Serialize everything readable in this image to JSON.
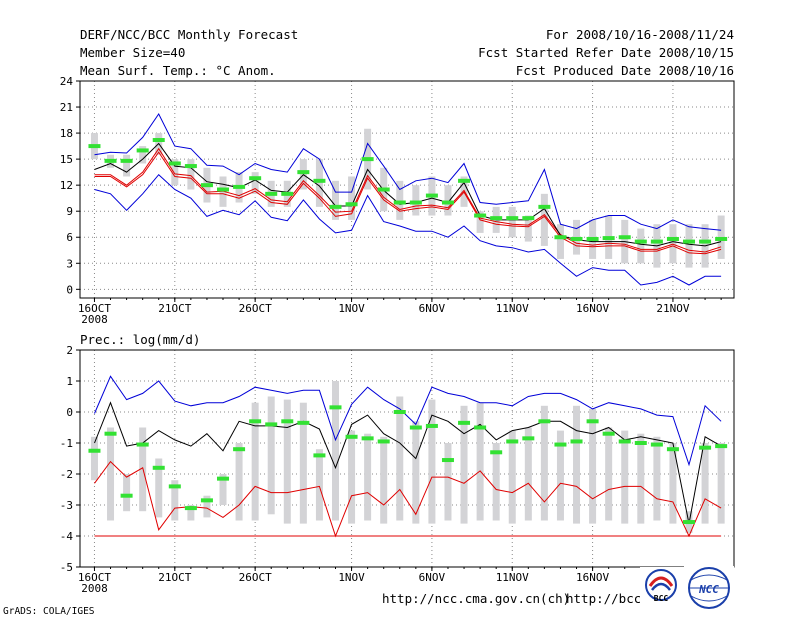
{
  "header": {
    "left_line1": "DERF/NCC/BCC Monthly Forecast",
    "left_line2": "Member Size=40",
    "left_line3": "Mean Surf. Temp.: °C Anom.",
    "right_line1": "For 2008/10/16-2008/11/24",
    "right_line2": "Fcst Started Refer Date 2008/10/15",
    "right_line3": "Fcst Produced Date 2008/10/16"
  },
  "footer": {
    "credit": "GrADS: COLA/IGES",
    "url1": "http://ncc.cma.gov.cn(ch)",
    "url2": "http://bcc.",
    "logo1_label": "BCC",
    "logo2_label": "NCC"
  },
  "colors": {
    "bar": "#d3d3d6",
    "median": "#33e133",
    "upper": "#0000d8",
    "mean": "#000000",
    "lower": "#e00000",
    "logo_red": "#d62020",
    "logo_blue": "#1a3faa"
  },
  "chart_data": [
    {
      "type": "line",
      "title": "Mean Surf. Temp.: °C Anom.",
      "xlabel": "",
      "ylabel": "",
      "ylim": [
        -1,
        24
      ],
      "yticks": [
        "0",
        "3",
        "6",
        "9",
        "12",
        "15",
        "18",
        "21",
        "24"
      ],
      "x_ticks": [
        {
          "day": 0,
          "label": "16OCT",
          "sub": "2008"
        },
        {
          "day": 5,
          "label": "21OCT"
        },
        {
          "day": 10,
          "label": "26OCT"
        },
        {
          "day": 16,
          "label": "1NOV"
        },
        {
          "day": 21,
          "label": "6NOV"
        },
        {
          "day": 26,
          "label": "11NOV"
        },
        {
          "day": 31,
          "label": "16NOV"
        },
        {
          "day": 36,
          "label": "21NOV"
        }
      ],
      "x_range": [
        -0.9,
        39.8
      ],
      "series": [
        {
          "name": "upper",
          "values": [
            15.5,
            15.8,
            15.7,
            17.5,
            20.2,
            16.5,
            16.2,
            14.3,
            14.2,
            13.2,
            14.5,
            13.8,
            13.5,
            16.2,
            15.0,
            11.2,
            11.2,
            16.8,
            14.2,
            11.5,
            12.5,
            12.8,
            12.3,
            14.5,
            10.0,
            9.8,
            10.0,
            10.2,
            13.8,
            7.5,
            7.0,
            8.0,
            8.5,
            8.5,
            7.5,
            7.0,
            8.0,
            7.2,
            7.0,
            6.8
          ]
        },
        {
          "name": "mean",
          "values": [
            13.8,
            14.5,
            13.5,
            15.0,
            16.8,
            14.2,
            14.0,
            12.4,
            12.1,
            11.7,
            12.6,
            11.4,
            11.2,
            13.2,
            11.9,
            9.6,
            9.6,
            13.8,
            11.4,
            9.8,
            10.0,
            10.5,
            10.0,
            12.3,
            8.5,
            8.0,
            8.0,
            8.0,
            9.3,
            6.2,
            5.7,
            5.5,
            5.5,
            5.5,
            5.2,
            5.0,
            5.5,
            5.2,
            5.0,
            5.5
          ]
        },
        {
          "name": "lower",
          "values": [
            11.5,
            11.0,
            9.1,
            11.0,
            13.2,
            11.5,
            10.5,
            8.4,
            9.1,
            8.6,
            10.2,
            8.3,
            7.9,
            10.3,
            8.1,
            6.5,
            6.8,
            10.8,
            7.8,
            7.3,
            6.7,
            6.7,
            6.0,
            7.3,
            5.6,
            5.0,
            4.8,
            4.3,
            4.6,
            3.0,
            1.5,
            2.5,
            2.2,
            2.2,
            0.5,
            0.8,
            1.5,
            0.5,
            1.5,
            1.5
          ]
        },
        {
          "name": "band_high",
          "values": [
            13.2,
            13.2,
            12.0,
            13.5,
            16.2,
            13.3,
            13.1,
            11.2,
            11.3,
            10.8,
            11.6,
            10.3,
            10.1,
            12.5,
            10.8,
            8.9,
            9.0,
            13.1,
            10.6,
            9.2,
            9.6,
            9.7,
            9.4,
            11.4,
            8.2,
            7.8,
            7.5,
            7.4,
            8.6,
            6.3,
            5.3,
            5.1,
            5.3,
            5.2,
            4.6,
            4.6,
            5.2,
            4.5,
            4.3,
            4.9
          ]
        },
        {
          "name": "band_low",
          "values": [
            13.0,
            13.0,
            11.8,
            13.2,
            15.8,
            13.0,
            12.8,
            11.0,
            11.0,
            10.5,
            11.3,
            10.0,
            9.8,
            12.2,
            10.5,
            8.4,
            8.7,
            12.8,
            10.3,
            9.0,
            9.3,
            9.5,
            9.2,
            11.2,
            8.0,
            7.5,
            7.3,
            7.2,
            8.4,
            6.0,
            5.0,
            4.9,
            5.0,
            5.0,
            4.4,
            4.4,
            5.0,
            4.2,
            4.1,
            4.6
          ]
        },
        {
          "name": "median",
          "values": [
            16.5,
            14.8,
            14.8,
            16.0,
            17.2,
            14.5,
            14.2,
            12.0,
            11.5,
            11.8,
            12.8,
            11.0,
            11.0,
            13.5,
            12.5,
            9.5,
            9.8,
            15.0,
            11.5,
            10.0,
            10.0,
            10.8,
            10.0,
            12.5,
            8.5,
            8.2,
            8.2,
            8.2,
            9.5,
            6.0,
            5.8,
            5.8,
            5.9,
            6.0,
            5.5,
            5.5,
            5.8,
            5.5,
            5.5,
            5.8
          ]
        },
        {
          "name": "bar_top",
          "values": [
            18.0,
            15.5,
            15.5,
            16.5,
            18.0,
            15.0,
            15.0,
            14.0,
            13.0,
            13.5,
            13.5,
            12.5,
            12.5,
            15.0,
            15.0,
            12.5,
            13.0,
            18.5,
            14.0,
            12.5,
            12.0,
            13.0,
            12.0,
            13.0,
            9.0,
            9.5,
            9.5,
            8.5,
            11.0,
            7.5,
            8.0,
            8.0,
            8.5,
            8.0,
            7.0,
            7.5,
            7.5,
            7.5,
            7.5,
            8.5
          ]
        },
        {
          "name": "bar_bottom",
          "values": [
            15.0,
            14.0,
            13.0,
            14.5,
            15.5,
            12.0,
            11.5,
            10.0,
            9.5,
            10.0,
            11.0,
            9.5,
            9.5,
            11.5,
            9.5,
            8.0,
            8.0,
            11.5,
            9.0,
            8.0,
            8.5,
            8.5,
            8.5,
            9.5,
            6.5,
            6.5,
            6.0,
            5.5,
            5.0,
            3.5,
            4.0,
            3.5,
            3.5,
            3.0,
            3.0,
            2.5,
            3.0,
            2.5,
            2.5,
            3.5
          ]
        }
      ]
    },
    {
      "type": "line",
      "title": "Prec.: log(mm/d)",
      "xlabel": "",
      "ylabel": "",
      "ylim": [
        -5,
        2
      ],
      "yticks": [
        "-5",
        "-4",
        "-3",
        "-2",
        "-1",
        "0",
        "1",
        "2"
      ],
      "x_ticks": [
        {
          "day": 0,
          "label": "16OCT",
          "sub": "2008"
        },
        {
          "day": 5,
          "label": "21OCT"
        },
        {
          "day": 10,
          "label": "26OCT"
        },
        {
          "day": 16,
          "label": "1NOV"
        },
        {
          "day": 21,
          "label": "6NOV"
        },
        {
          "day": 26,
          "label": "11NOV"
        },
        {
          "day": 31,
          "label": "16NOV"
        }
      ],
      "x_range": [
        -0.9,
        39.8
      ],
      "series": [
        {
          "name": "upper",
          "values": [
            -0.05,
            1.15,
            0.4,
            0.6,
            1.0,
            0.35,
            0.2,
            0.3,
            0.3,
            0.5,
            0.8,
            0.7,
            0.6,
            0.7,
            0.7,
            -0.9,
            0.25,
            0.8,
            0.4,
            0.1,
            -0.4,
            0.8,
            0.6,
            0.5,
            0.3,
            0.3,
            0.2,
            0.5,
            0.6,
            0.6,
            0.4,
            0.1,
            0.3,
            0.2,
            0.1,
            -0.1,
            -0.15,
            -1.7,
            0.2,
            -0.3
          ]
        },
        {
          "name": "mean",
          "values": [
            -1.0,
            0.3,
            -1.1,
            -1.0,
            -0.6,
            -0.9,
            -1.1,
            -0.7,
            -1.25,
            -0.3,
            -0.45,
            -0.45,
            -0.5,
            -0.3,
            -0.55,
            -1.8,
            -0.4,
            -0.1,
            -0.7,
            -1.0,
            -1.5,
            -0.1,
            -0.3,
            -0.7,
            -0.4,
            -0.9,
            -0.6,
            -0.5,
            -0.3,
            -0.3,
            -0.6,
            -0.7,
            -0.5,
            -0.9,
            -0.8,
            -0.9,
            -1.0,
            -3.6,
            -0.8,
            -1.1
          ]
        },
        {
          "name": "lower",
          "values": [
            -2.3,
            -1.6,
            -2.1,
            -1.8,
            -3.8,
            -3.1,
            -3.05,
            -3.1,
            -3.4,
            -3.0,
            -2.4,
            -2.6,
            -2.6,
            -2.5,
            -2.4,
            -4.0,
            -2.7,
            -2.6,
            -3.0,
            -2.5,
            -3.3,
            -2.1,
            -2.1,
            -2.3,
            -1.9,
            -2.5,
            -2.6,
            -2.3,
            -2.9,
            -2.3,
            -2.4,
            -2.8,
            -2.5,
            -2.4,
            -2.4,
            -2.8,
            -2.9,
            -4.0,
            -2.8,
            -3.1
          ]
        },
        {
          "name": "floor",
          "values": [
            -4.0,
            -4.0,
            -4.0,
            -4.0,
            -4.0,
            -4.0,
            -4.0,
            -4.0,
            -4.0,
            -4.0,
            -4.0,
            -4.0,
            -4.0,
            -4.0,
            -4.0,
            -4.0,
            -4.0,
            -4.0,
            -4.0,
            -4.0,
            -4.0,
            -4.0,
            -4.0,
            -4.0,
            -4.0,
            -4.0,
            -4.0,
            -4.0,
            -4.0,
            -4.0,
            -4.0,
            -4.0,
            -4.0,
            -4.0,
            -4.0,
            -4.0,
            -4.0,
            -4.0,
            -4.0,
            -4.0
          ]
        },
        {
          "name": "median",
          "values": [
            -1.25,
            -0.7,
            -2.7,
            -1.05,
            -1.8,
            -2.4,
            -3.1,
            -2.85,
            -2.15,
            -1.2,
            -0.3,
            -0.4,
            -0.3,
            -0.35,
            -1.4,
            0.15,
            -0.8,
            -0.85,
            -0.95,
            0.0,
            -0.5,
            -0.45,
            -1.55,
            -0.35,
            -0.5,
            -1.3,
            -0.95,
            -0.85,
            -0.3,
            -1.05,
            -0.95,
            -0.3,
            -0.7,
            -0.95,
            -1.0,
            -1.05,
            -1.2,
            -3.55,
            -1.15,
            -1.1
          ]
        },
        {
          "name": "bar_top",
          "values": [
            -0.8,
            -0.5,
            -2.0,
            -0.5,
            -1.5,
            -2.2,
            -3.0,
            -2.7,
            -2.0,
            -1.0,
            0.3,
            0.5,
            0.4,
            0.3,
            -1.2,
            1.0,
            -0.6,
            -0.7,
            -0.8,
            0.5,
            -0.3,
            0.4,
            -1.0,
            0.2,
            0.3,
            -1.0,
            -0.6,
            -0.5,
            0.2,
            -0.6,
            0.2,
            0.1,
            -0.5,
            -0.6,
            -0.7,
            -0.8,
            -1.0,
            -3.2,
            -1.0,
            -1.0
          ]
        },
        {
          "name": "bar_bottom",
          "values": [
            -2.2,
            -3.5,
            -3.2,
            -3.2,
            -3.4,
            -3.5,
            -3.5,
            -3.4,
            -3.0,
            -3.5,
            -3.5,
            -3.3,
            -3.6,
            -3.6,
            -3.5,
            -3.5,
            -3.6,
            -3.5,
            -3.6,
            -3.5,
            -3.6,
            -3.6,
            -3.5,
            -3.6,
            -3.5,
            -3.5,
            -3.6,
            -3.5,
            -3.5,
            -3.5,
            -3.6,
            -3.6,
            -3.5,
            -3.6,
            -3.6,
            -3.5,
            -3.6,
            -3.9,
            -3.6,
            -3.6
          ]
        }
      ]
    }
  ]
}
